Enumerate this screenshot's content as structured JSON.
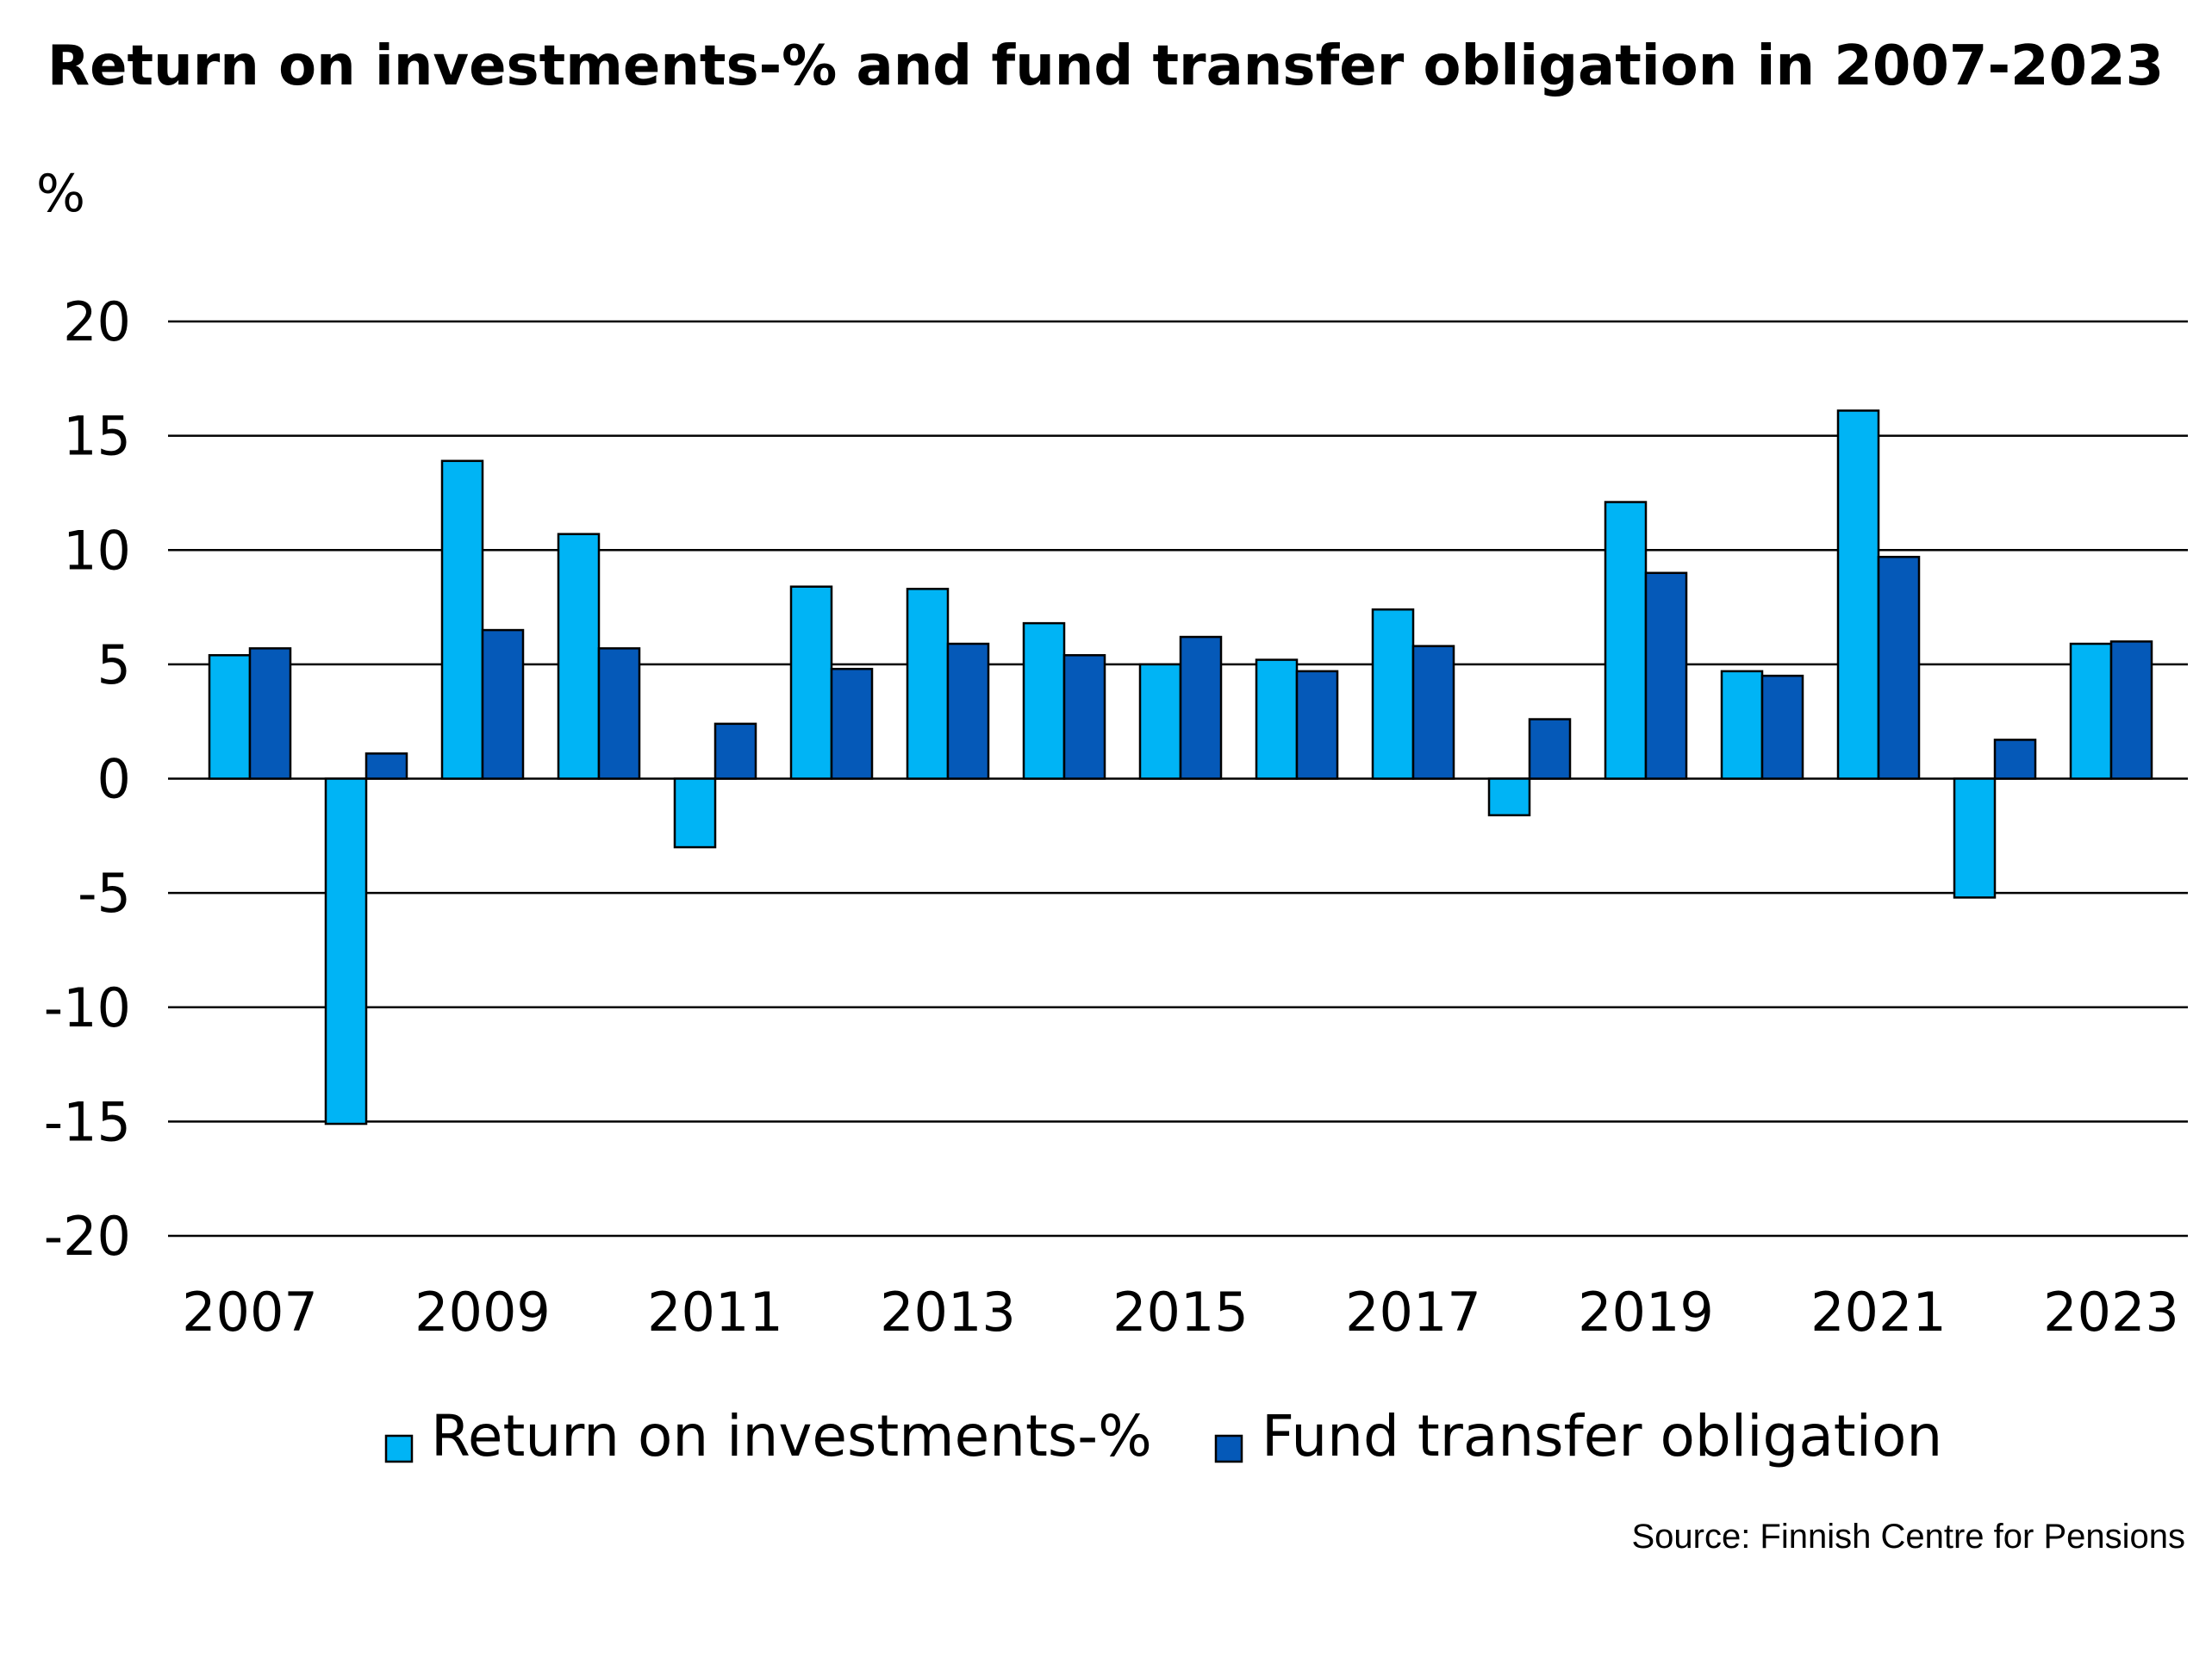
{
  "chart_data": {
    "type": "bar",
    "title": "Return on investments-% and fund transfer obligation in 2007-2023",
    "ylabel": "%",
    "xlabel": "",
    "categories": [
      "2007",
      "2008",
      "2009",
      "2010",
      "2011",
      "2012",
      "2013",
      "2014",
      "2015",
      "2016",
      "2017",
      "2018",
      "2019",
      "2020",
      "2021",
      "2022",
      "2023"
    ],
    "x_tick_labels": [
      "2007",
      "2009",
      "2011",
      "2013",
      "2015",
      "2017",
      "2019",
      "2021",
      "2023"
    ],
    "y_tick_labels": [
      "20",
      "15",
      "10",
      "5",
      "0",
      "-5",
      "-10",
      "-15",
      "-20"
    ],
    "ylim": [
      -20,
      20
    ],
    "y_ticks": [
      20,
      15,
      10,
      5,
      0,
      -5,
      -10,
      -15,
      -20
    ],
    "grid": true,
    "legend_placement": "bottom",
    "series": [
      {
        "name": "Return on investments-%",
        "color": "#00b4f5",
        "values": [
          5.4,
          -15.1,
          13.9,
          10.7,
          -3.0,
          8.4,
          8.3,
          6.8,
          5.0,
          5.2,
          7.4,
          -1.6,
          12.1,
          4.7,
          16.1,
          -5.2,
          5.9
        ]
      },
      {
        "name": "Fund transfer obligation",
        "color": "#0559b8",
        "values": [
          5.7,
          1.1,
          6.5,
          5.7,
          2.4,
          4.8,
          5.9,
          5.4,
          6.2,
          4.7,
          5.8,
          2.6,
          9.0,
          4.5,
          9.7,
          1.7,
          6.0
        ]
      }
    ],
    "source": "Source: Finnish Centre for Pensions"
  }
}
